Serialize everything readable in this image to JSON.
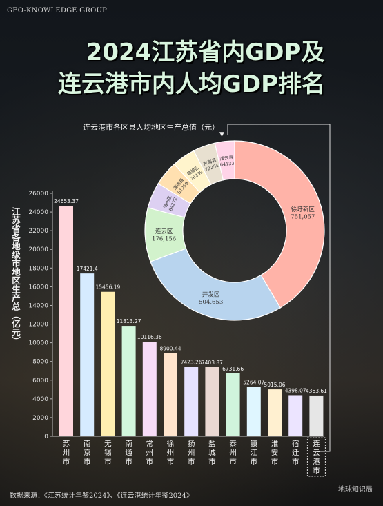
{
  "brand": "GEO-KNOWLEDGE GROUP",
  "title_line1": "2024江苏省内GDP及",
  "title_line2": "连云港市内人均GDP排名",
  "source": "数据来源：《江苏统计年鉴2024》、《连云港统计年鉴2024》",
  "watermark": "地球知识局",
  "chart_data": [
    {
      "type": "bar",
      "ylabel": "江苏省各地级市地区生产总（亿元）",
      "ylim": [
        0,
        26000
      ],
      "yticks": [
        0,
        2000,
        4000,
        6000,
        8000,
        10000,
        12000,
        14000,
        16000,
        18000,
        20000,
        22000,
        24000,
        26000
      ],
      "categories": [
        "苏州市",
        "南京市",
        "无锡市",
        "南通市",
        "常州市",
        "徐州市",
        "扬州市",
        "盐城市",
        "泰州市",
        "镇江市",
        "淮安市",
        "宿迁市",
        "连云港市"
      ],
      "values": [
        24653.37,
        17421.4,
        15456.19,
        11813.27,
        10116.36,
        8900.44,
        7423.26,
        7403.87,
        6731.66,
        5264.07,
        5015.06,
        4398.07,
        4363.61
      ],
      "value_labels": [
        "24653.37",
        "17421.4",
        "15456.19",
        "11813.27",
        "10116.36",
        "8900.44",
        "7423.26",
        "7403.87",
        "6731.66",
        "5264.07",
        "5015.06",
        "4398.07",
        "4363.61"
      ],
      "colors": [
        "#ffd6dc",
        "#d6ebff",
        "#ffeeb0",
        "#d2f7dc",
        "#f7dcf7",
        "#ffe4cc",
        "#e6e2ff",
        "#ead8d2",
        "#d0f4dc",
        "#dff6ff",
        "#fff0d0",
        "#ece4ff",
        "#e6e6e6"
      ]
    },
    {
      "type": "pie",
      "title": "连云港市各区县人均地区生产总值（元）",
      "categories": [
        "徐圩新区",
        "开发区",
        "连云区",
        "海州区",
        "灌南县",
        "赣榆区",
        "东海县",
        "灌云县"
      ],
      "values": [
        751057,
        504653,
        176156,
        84272,
        81259,
        76239,
        72254,
        64133
      ],
      "value_labels": [
        "751,057",
        "504,653",
        "176,156",
        "84272",
        "81259",
        "76239",
        "72254",
        "64133"
      ],
      "colors": [
        "#ffb3a8",
        "#b8d4ee",
        "#d2f2cc",
        "#ddd0f2",
        "#ffe0b0",
        "#fff4cc",
        "#e8e0d0",
        "#ffd4e8"
      ]
    }
  ]
}
